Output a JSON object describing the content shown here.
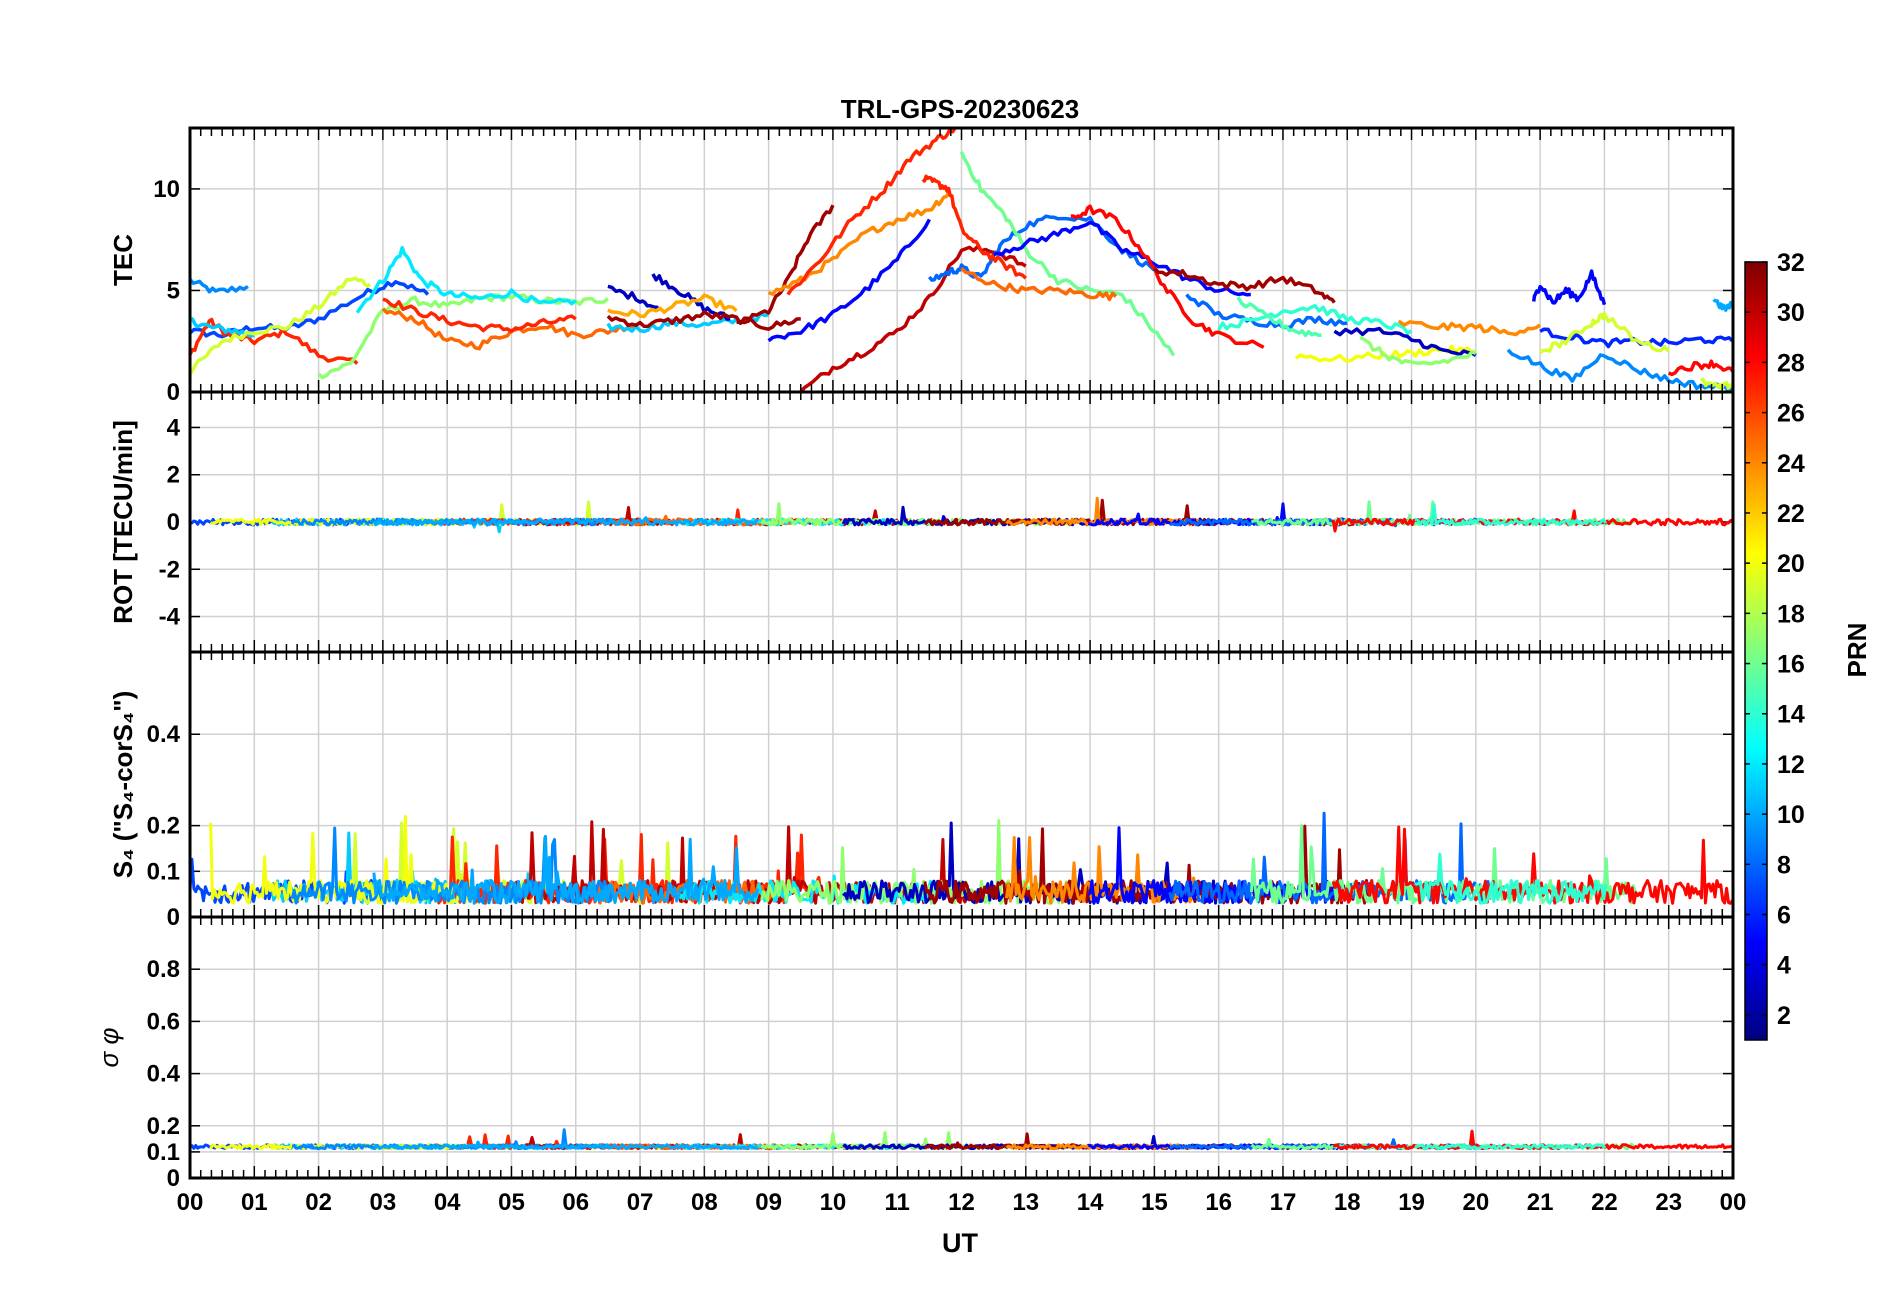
{
  "figure": {
    "title": "TRL-GPS-20230623",
    "xlabel": "UT",
    "x_ticks": [
      "00",
      "01",
      "02",
      "03",
      "04",
      "05",
      "06",
      "07",
      "08",
      "09",
      "10",
      "11",
      "12",
      "13",
      "14",
      "15",
      "16",
      "17",
      "18",
      "19",
      "20",
      "21",
      "22",
      "23",
      "00"
    ]
  },
  "colorbar": {
    "label": "PRN",
    "range": [
      1,
      32
    ],
    "ticks": [
      "2",
      "4",
      "6",
      "8",
      "10",
      "12",
      "14",
      "16",
      "18",
      "20",
      "22",
      "24",
      "26",
      "28",
      "30",
      "32"
    ],
    "colormap": "jet",
    "colors": [
      "#00007f",
      "#0000ff",
      "#007fff",
      "#00ffff",
      "#7fff7f",
      "#ffff00",
      "#ff7f00",
      "#ff0000",
      "#7f0000"
    ]
  },
  "chart_data": [
    {
      "type": "line",
      "panel": "TEC",
      "ylabel": "TEC",
      "ylim": [
        0,
        13
      ],
      "y_ticks": [
        "0",
        "5",
        "10"
      ],
      "x_range_hours": [
        0,
        24
      ],
      "grid": true,
      "series": [
        {
          "prn": 9,
          "x": [
            0.0,
            0.4,
            0.9
          ],
          "y": [
            5.5,
            4.9,
            5.2
          ]
        },
        {
          "prn": 7,
          "x": [
            0.0,
            0.5,
            1.0,
            1.5,
            2.0,
            2.7,
            3.2,
            3.7
          ],
          "y": [
            3.0,
            2.8,
            3.2,
            3.1,
            3.6,
            4.8,
            5.5,
            4.8
          ]
        },
        {
          "prn": 27,
          "x": [
            0.0,
            0.3,
            0.6,
            1.0,
            1.5,
            2.0,
            2.6
          ],
          "y": [
            1.8,
            3.5,
            2.8,
            2.5,
            3.0,
            1.8,
            1.4
          ]
        },
        {
          "prn": 11,
          "x": [
            0.0,
            0.3,
            0.7,
            1.0
          ],
          "y": [
            3.5,
            3.2,
            3.0,
            2.8
          ]
        },
        {
          "prn": 19,
          "x": [
            0.0,
            0.5,
            1.0,
            1.5,
            2.0,
            2.5,
            2.8
          ],
          "y": [
            1.0,
            2.5,
            3.0,
            3.2,
            4.2,
            5.6,
            5.3
          ]
        },
        {
          "prn": 17,
          "x": [
            2.0,
            2.5,
            3.0,
            3.5,
            4.0,
            4.5,
            5.0,
            5.5,
            6.0,
            6.5
          ],
          "y": [
            0.8,
            1.4,
            4.0,
            4.5,
            4.2,
            4.6,
            4.7,
            4.5,
            4.4,
            4.6
          ]
        },
        {
          "prn": 12,
          "x": [
            2.6,
            3.0,
            3.3,
            3.6,
            4.0,
            4.5,
            5.0,
            5.5,
            6.0
          ],
          "y": [
            4.0,
            5.5,
            7.0,
            5.5,
            4.8,
            4.6,
            4.9,
            4.3,
            4.5
          ]
        },
        {
          "prn": 25,
          "x": [
            3.0,
            3.5,
            4.0,
            4.5,
            5.0,
            5.5,
            6.0,
            6.5,
            7.0
          ],
          "y": [
            4.0,
            3.6,
            2.5,
            2.3,
            3.0,
            3.3,
            2.8,
            3.0,
            3.4
          ]
        },
        {
          "prn": 27,
          "x": [
            3.0,
            3.5,
            4.0,
            4.5,
            5.0,
            5.5,
            6.0
          ],
          "y": [
            4.6,
            4.0,
            3.5,
            3.2,
            3.1,
            3.4,
            3.6
          ]
        },
        {
          "prn": 11,
          "x": [
            6.5,
            7.0,
            7.5,
            8.0,
            8.5,
            9.0
          ],
          "y": [
            3.2,
            3.1,
            3.4,
            3.3,
            3.5,
            3.8
          ]
        },
        {
          "prn": 3,
          "x": [
            6.5,
            7.0,
            7.3
          ],
          "y": [
            5.1,
            4.6,
            4.0
          ]
        },
        {
          "prn": 3,
          "x": [
            7.2,
            7.6,
            8.0,
            8.4
          ],
          "y": [
            5.8,
            5.0,
            4.1,
            3.6
          ]
        },
        {
          "prn": 31,
          "x": [
            6.5,
            7.0,
            7.5,
            8.0,
            8.5,
            9.0,
            9.5
          ],
          "y": [
            3.7,
            3.3,
            3.5,
            3.8,
            3.6,
            3.2,
            3.6
          ]
        },
        {
          "prn": 23,
          "x": [
            6.5,
            7.0,
            7.5,
            8.0,
            8.5
          ],
          "y": [
            4.0,
            3.8,
            4.2,
            4.6,
            4.0
          ]
        },
        {
          "prn": 31,
          "x": [
            8.5,
            9.0,
            9.3,
            9.6,
            10.0
          ],
          "y": [
            3.3,
            4.0,
            5.5,
            7.5,
            9.2
          ]
        },
        {
          "prn": 5,
          "x": [
            9.0,
            9.5,
            10.0,
            10.5,
            11.0,
            11.5
          ],
          "y": [
            2.6,
            3.0,
            3.8,
            5.0,
            6.5,
            8.5
          ]
        },
        {
          "prn": 24,
          "x": [
            9.0,
            9.5,
            10.0,
            10.5,
            11.0,
            11.5,
            11.8
          ],
          "y": [
            4.8,
            5.5,
            6.5,
            7.8,
            8.5,
            9.0,
            9.8
          ]
        },
        {
          "prn": 27,
          "x": [
            9.3,
            9.8,
            10.3,
            10.8,
            11.2,
            11.6,
            11.9
          ],
          "y": [
            4.8,
            6.5,
            8.5,
            10.0,
            11.5,
            12.4,
            13.0
          ]
        },
        {
          "prn": 30,
          "x": [
            9.5,
            10.0,
            10.5,
            11.0,
            11.5,
            12.0,
            12.5,
            13.0
          ],
          "y": [
            0.0,
            1.2,
            2.0,
            3.0,
            4.6,
            7.0,
            7.0,
            6.2
          ]
        },
        {
          "prn": 8,
          "x": [
            11.5,
            11.8,
            12.0,
            12.3,
            12.6,
            13.0,
            13.5,
            14.0,
            14.5,
            15.0
          ],
          "y": [
            5.5,
            5.9,
            6.1,
            5.6,
            7.2,
            8.2,
            8.7,
            8.5,
            7.0,
            6.0
          ]
        },
        {
          "prn": 27,
          "x": [
            11.4,
            11.6,
            11.8,
            12.0,
            12.3,
            12.6,
            13.0
          ],
          "y": [
            10.5,
            10.3,
            10.0,
            8.0,
            7.0,
            6.4,
            5.6
          ]
        },
        {
          "prn": 16,
          "x": [
            12.0,
            12.3,
            12.7,
            13.0,
            13.5,
            14.0,
            14.5,
            15.0,
            15.3
          ],
          "y": [
            11.8,
            10.0,
            8.6,
            7.0,
            5.5,
            5.0,
            4.8,
            3.0,
            1.8
          ]
        },
        {
          "prn": 25,
          "x": [
            12.0,
            12.5,
            13.0,
            13.5,
            14.0,
            14.4
          ],
          "y": [
            6.0,
            5.3,
            5.0,
            5.0,
            4.8,
            4.7
          ]
        },
        {
          "prn": 5,
          "x": [
            12.5,
            13.0,
            13.5,
            14.0,
            14.5,
            15.0,
            15.5,
            16.0,
            16.5
          ],
          "y": [
            6.8,
            7.3,
            7.8,
            8.4,
            7.0,
            6.4,
            5.6,
            5.0,
            4.8
          ]
        },
        {
          "prn": 28,
          "x": [
            13.7,
            14.0,
            14.4,
            14.8,
            15.2,
            15.6,
            16.0,
            16.7
          ],
          "y": [
            8.5,
            9.0,
            8.5,
            7.0,
            5.0,
            3.5,
            2.8,
            2.2
          ]
        },
        {
          "prn": 31,
          "x": [
            15.0,
            15.5,
            16.0,
            16.5,
            17.0,
            17.5,
            17.8
          ],
          "y": [
            6.0,
            5.8,
            5.3,
            5.2,
            5.6,
            5.0,
            4.4
          ]
        },
        {
          "prn": 8,
          "x": [
            15.5,
            16.0,
            16.5,
            17.0,
            17.5,
            18.0
          ],
          "y": [
            4.8,
            3.8,
            3.5,
            3.3,
            3.6,
            3.4
          ]
        },
        {
          "prn": 14,
          "x": [
            16.0,
            16.5,
            17.0,
            17.5,
            18.0,
            18.5,
            19.0
          ],
          "y": [
            3.2,
            3.5,
            4.0,
            4.2,
            3.6,
            3.4,
            3.0
          ]
        },
        {
          "prn": 15,
          "x": [
            16.3,
            16.8,
            17.2,
            17.6
          ],
          "y": [
            4.5,
            3.6,
            3.0,
            2.8
          ]
        },
        {
          "prn": 20,
          "x": [
            17.2,
            17.8,
            18.5,
            19.0,
            19.5,
            20.0
          ],
          "y": [
            1.8,
            1.6,
            1.8,
            1.9,
            2.1,
            2.0
          ]
        },
        {
          "prn": 3,
          "x": [
            17.8,
            18.5,
            19.0,
            19.5,
            20.0
          ],
          "y": [
            3.0,
            3.0,
            2.6,
            2.0,
            1.8
          ]
        },
        {
          "prn": 24,
          "x": [
            18.8,
            19.5,
            20.0,
            20.5,
            21.0
          ],
          "y": [
            3.4,
            3.2,
            3.2,
            2.9,
            3.3
          ]
        },
        {
          "prn": 17,
          "x": [
            18.2,
            18.6,
            19.0,
            19.5,
            20.0
          ],
          "y": [
            2.6,
            1.8,
            1.3,
            1.5,
            1.9
          ]
        },
        {
          "prn": 5,
          "x": [
            20.9,
            21.0,
            21.2,
            21.4,
            21.6,
            21.8,
            22.0
          ],
          "y": [
            4.5,
            5.3,
            4.4,
            5.0,
            4.6,
            5.8,
            4.3
          ]
        },
        {
          "prn": 9,
          "x": [
            20.5,
            21.0,
            21.5,
            22.0,
            22.5,
            23.0,
            23.5,
            24.0
          ],
          "y": [
            2.1,
            1.3,
            0.6,
            1.9,
            1.1,
            0.6,
            0.3,
            0.2
          ]
        },
        {
          "prn": 6,
          "x": [
            21.0,
            21.5,
            22.0,
            22.5,
            23.0,
            23.5,
            24.0
          ],
          "y": [
            3.0,
            2.7,
            2.4,
            2.5,
            2.4,
            2.6,
            2.5
          ]
        },
        {
          "prn": 19,
          "x": [
            21.0,
            21.4,
            21.8,
            22.0,
            22.5,
            23.0
          ],
          "y": [
            2.0,
            2.5,
            3.4,
            3.8,
            2.5,
            2.0
          ]
        },
        {
          "prn": 28,
          "x": [
            23.0,
            23.4,
            23.7,
            24.0
          ],
          "y": [
            1.0,
            1.3,
            1.4,
            1.0
          ]
        },
        {
          "prn": 19,
          "x": [
            23.5,
            23.8,
            24.0
          ],
          "y": [
            0.5,
            0.2,
            0.4
          ]
        },
        {
          "prn": 10,
          "x": [
            23.7,
            23.85,
            24.0
          ],
          "y": [
            4.6,
            4.1,
            4.3
          ]
        }
      ]
    },
    {
      "type": "line",
      "panel": "ROT",
      "ylabel": "ROT [TECU/min]",
      "ylim": [
        -5.5,
        5.5
      ],
      "y_ticks": [
        "-4",
        "-2",
        "0",
        "2",
        "4"
      ],
      "grid": true,
      "typical_range": [
        -0.5,
        0.9
      ],
      "series_prns": [
        7,
        11,
        19,
        27,
        30,
        25,
        12,
        17,
        3,
        31,
        24,
        5,
        8,
        16,
        28,
        14,
        20,
        9,
        10
      ]
    },
    {
      "type": "line",
      "panel": "S4",
      "ylabel": "S₄ (\"S₄-corS₄\")",
      "ylim": [
        0,
        0.58
      ],
      "y_ticks": [
        "0",
        "0.1",
        "0.2",
        "0.4"
      ],
      "grid": true,
      "typical_range": [
        0.0,
        0.23
      ],
      "series_prns": [
        7,
        11,
        19,
        27,
        30,
        25,
        12,
        17,
        3,
        31,
        24,
        5,
        8,
        16,
        28,
        14,
        20,
        9,
        10
      ]
    },
    {
      "type": "line",
      "panel": "sigma_phi",
      "ylabel": "σ φ",
      "ylim": [
        0,
        1
      ],
      "y_ticks": [
        "0",
        "0.1",
        "0.2",
        "0.4",
        "0.6",
        "0.8"
      ],
      "grid": true,
      "typical_range": [
        0.09,
        0.18
      ],
      "series_prns": [
        7,
        11,
        19,
        27,
        30,
        25,
        12,
        17,
        3,
        31,
        24,
        5,
        8,
        16,
        28,
        14,
        20,
        9,
        10
      ]
    }
  ]
}
